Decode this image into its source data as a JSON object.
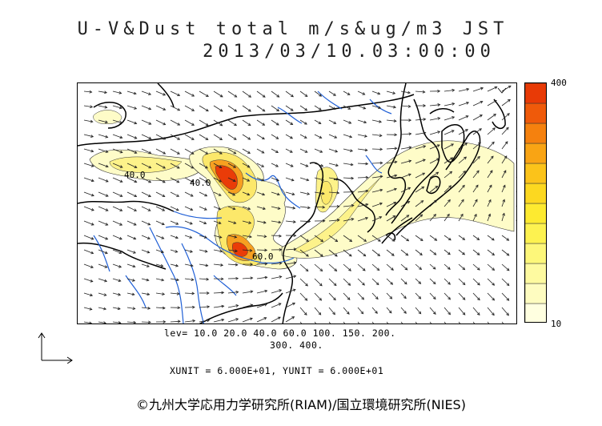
{
  "title": {
    "line1": "U-V&Dust total m/s&ug/m3 JST",
    "line2": "2013/03/10.03:00:00"
  },
  "colorbar": {
    "max_label": "400",
    "min_label": "10",
    "colors": [
      "#ffffe0",
      "#fefcc0",
      "#fefaa0",
      "#fdf77a",
      "#fdf250",
      "#fdea30",
      "#fcd820",
      "#fbc31a",
      "#f9a414",
      "#f5810e",
      "#ef5a0a",
      "#e83a06"
    ]
  },
  "levels": {
    "line1": "lev= 10.0 20.0 40.0 60.0 100. 150. 200.",
    "line2": "300. 400."
  },
  "units": "XUNIT = 6.000E+01, YUNIT = 6.000E+01",
  "credit": "©九州大学応用力学研究所(RIAM)/国立環境研究所(NIES)",
  "contour_labels": [
    "40.0",
    "40.0",
    "60.0"
  ],
  "colors": {
    "coast": "#000000",
    "rivers": "#1f5fd6",
    "arrows": "#222222",
    "low": "#fefcc8",
    "mid": "#fce86a",
    "high": "#f7a020",
    "peak": "#ea3c08"
  }
}
